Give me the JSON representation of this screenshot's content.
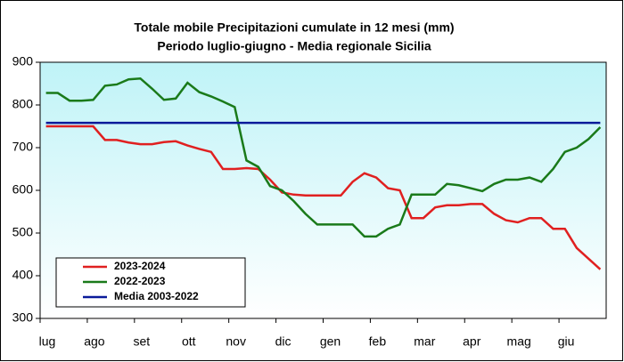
{
  "chart_data": {
    "type": "line",
    "title": "Totale mobile Precipitazioni cumulate in 12 mesi (mm)",
    "subtitle": "Periodo luglio-giugno - Media regionale Sicilia",
    "categories": [
      "lug",
      null,
      null,
      null,
      "ago",
      null,
      null,
      null,
      "set",
      null,
      null,
      null,
      "ott",
      null,
      null,
      null,
      "nov",
      null,
      null,
      null,
      "dic",
      null,
      null,
      null,
      "gen",
      null,
      null,
      null,
      "feb",
      null,
      null,
      null,
      "mar",
      null,
      null,
      null,
      "apr",
      null,
      null,
      null,
      "mag",
      null,
      null,
      null,
      "giu",
      null,
      null,
      null
    ],
    "series": [
      {
        "name": "2023-2024",
        "color": "#e02020",
        "values": [
          750,
          750,
          750,
          750,
          750,
          718,
          718,
          712,
          708,
          708,
          713,
          715,
          705,
          697,
          690,
          650,
          650,
          652,
          650,
          625,
          595,
          590,
          588,
          588,
          588,
          588,
          620,
          640,
          630,
          605,
          600,
          535,
          535,
          560,
          565,
          565,
          568,
          568,
          545,
          530,
          525,
          535,
          535,
          510,
          510,
          465,
          440,
          415
        ]
      },
      {
        "name": "2022-2023",
        "color": "#1a7a1a",
        "values": [
          828,
          828,
          810,
          810,
          812,
          845,
          848,
          860,
          862,
          838,
          812,
          815,
          852,
          830,
          820,
          808,
          795,
          670,
          655,
          610,
          600,
          575,
          545,
          520,
          520,
          520,
          520,
          492,
          492,
          510,
          520,
          590,
          590,
          590,
          615,
          612,
          605,
          598,
          615,
          625,
          625,
          630,
          620,
          650,
          690,
          700,
          720,
          748
        ]
      },
      {
        "name": "Media 2003-2022",
        "color": "#0a1a9a",
        "values": [
          758,
          758,
          758,
          758,
          758,
          758,
          758,
          758,
          758,
          758,
          758,
          758,
          758,
          758,
          758,
          758,
          758,
          758,
          758,
          758,
          758,
          758,
          758,
          758,
          758,
          758,
          758,
          758,
          758,
          758,
          758,
          758,
          758,
          758,
          758,
          758,
          758,
          758,
          758,
          758,
          758,
          758,
          758,
          758,
          758,
          758,
          758,
          758
        ]
      }
    ],
    "ylim": [
      300,
      900
    ],
    "yticks": [
      300,
      400,
      500,
      600,
      700,
      800,
      900
    ],
    "legend": "lower left"
  }
}
